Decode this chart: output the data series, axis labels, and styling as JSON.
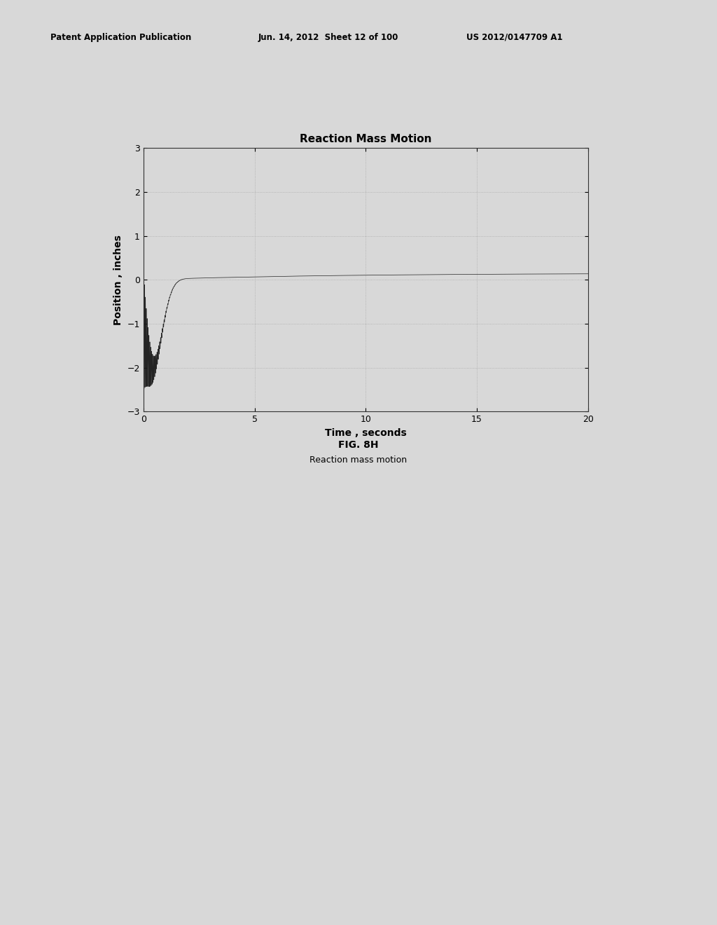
{
  "title": "Reaction Mass Motion",
  "xlabel": "Time , seconds",
  "ylabel": "Position , inches",
  "xlim": [
    0,
    20
  ],
  "ylim": [
    -3,
    3
  ],
  "xticks": [
    0,
    5,
    10,
    15,
    20
  ],
  "yticks": [
    -3,
    -2,
    -1,
    0,
    1,
    2,
    3
  ],
  "line_color": "#1a1a1a",
  "bg_color": "#d8d8d8",
  "plot_bg_color": "#d8d8d8",
  "grid_color": "#aaaaaa",
  "fig_caption_bold": "FIG. 8H",
  "fig_caption_normal": "Reaction mass motion",
  "header_left": "Patent Application Publication",
  "header_mid": "Jun. 14, 2012  Sheet 12 of 100",
  "header_right": "US 2012/0147709 A1",
  "oscillation_freq": 25.0,
  "decay_rate_osc": 3.5,
  "decay_rate_drift": 0.12,
  "drift_amplitude": 0.15,
  "initial_spike_amp": 1.4,
  "lower_spike_amp": 1.5,
  "lower_spike_decay": 2.8
}
